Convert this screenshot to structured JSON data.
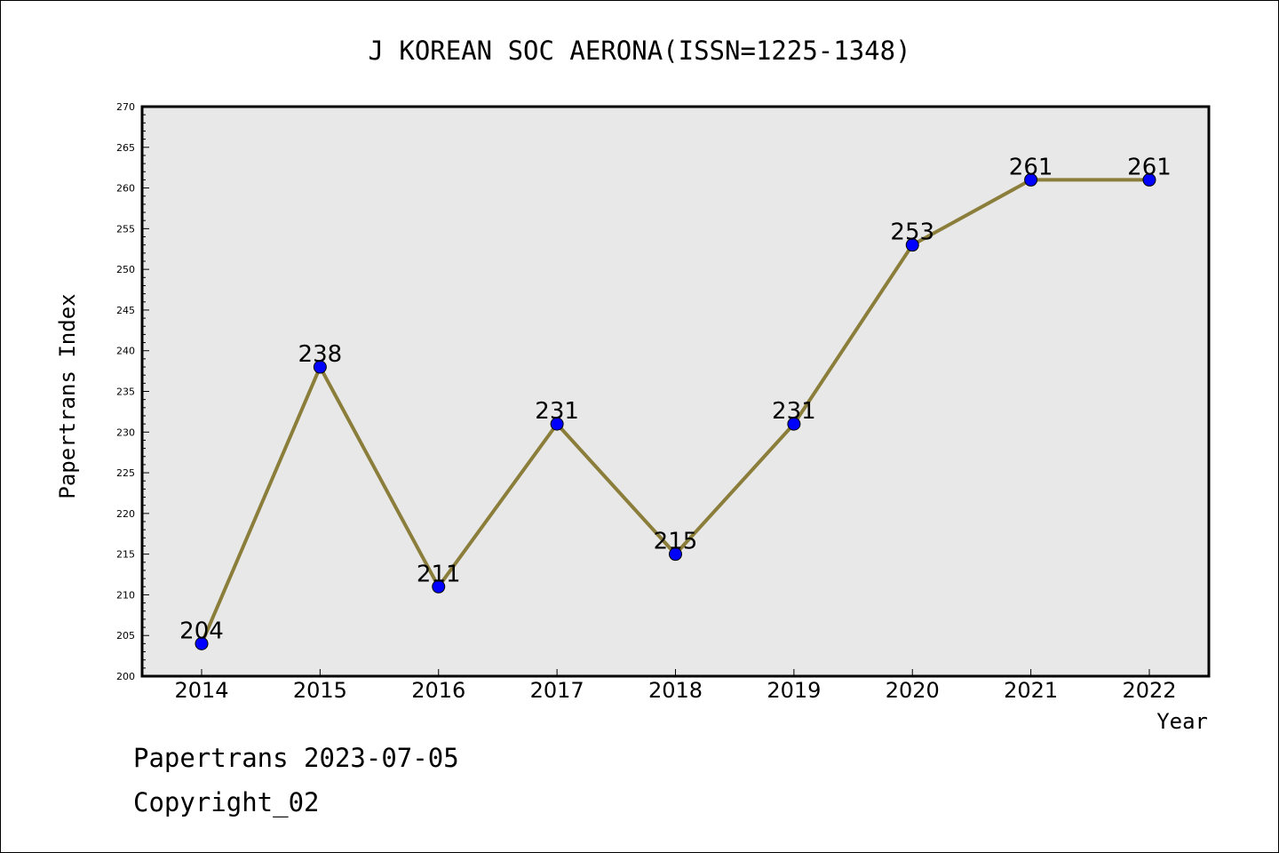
{
  "chart_data": {
    "type": "line",
    "title": "J KOREAN SOC AERONA(ISSN=1225-1348)",
    "xlabel": "Year",
    "ylabel": "Papertrans Index",
    "x": [
      "2014",
      "2015",
      "2016",
      "2017",
      "2018",
      "2019",
      "2020",
      "2021",
      "2022"
    ],
    "values": [
      204,
      238,
      211,
      231,
      215,
      231,
      253,
      261,
      261
    ],
    "data_labels": [
      "204",
      "238",
      "211",
      "231",
      "215",
      "231",
      "253",
      "261",
      "261"
    ],
    "ylim": [
      200,
      270
    ],
    "yticks": [
      "200",
      "205",
      "210",
      "215",
      "220",
      "225",
      "230",
      "235",
      "240",
      "245",
      "250",
      "255",
      "260",
      "265",
      "270"
    ],
    "grid": false,
    "colors": {
      "line": "#8b7d3a",
      "marker": "#0000ff",
      "plot_background": "#e8e8e8"
    }
  },
  "footer": {
    "date_line": "Papertrans 2023-07-05",
    "copyright": "Copyright_02"
  }
}
